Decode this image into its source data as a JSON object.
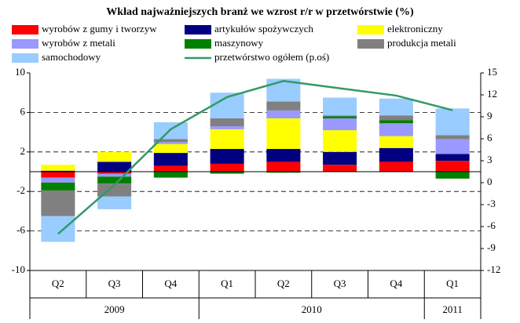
{
  "chart_data": {
    "type": "bar",
    "stacked": true,
    "title": "Wkład najważniejszych branż we wzrost r/r w przetwórstwie (%)",
    "categories": [
      "Q2",
      "Q3",
      "Q4",
      "Q1",
      "Q2",
      "Q3",
      "Q4",
      "Q1"
    ],
    "year_groups": [
      {
        "name": "2009",
        "count": 3
      },
      {
        "name": "2010",
        "count": 4
      },
      {
        "name": "2011",
        "count": 1
      }
    ],
    "series": [
      {
        "name": "wyrobów z gumy i tworzyw",
        "color": "#ff0000",
        "values": [
          -0.6,
          -0.2,
          0.6,
          0.8,
          1.0,
          0.7,
          1.0,
          1.1
        ]
      },
      {
        "name": "artykułów spożywczych",
        "color": "#000080",
        "values": [
          0.1,
          1.0,
          1.3,
          1.5,
          1.3,
          1.3,
          1.4,
          0.7
        ]
      },
      {
        "name": "elektroniczny",
        "color": "#ffff00",
        "values": [
          0.6,
          1.0,
          0.9,
          2.0,
          3.1,
          2.2,
          1.2,
          0
        ]
      },
      {
        "name": "wyrobów z metali",
        "color": "#9999ff",
        "values": [
          -0.5,
          -0.3,
          0.2,
          0.3,
          0.8,
          1.2,
          1.3,
          1.5
        ]
      },
      {
        "name": "maszynowy",
        "color": "#008000",
        "values": [
          -0.8,
          -0.7,
          -0.6,
          -0.2,
          -0.1,
          0.2,
          0.3,
          -0.7
        ]
      },
      {
        "name": "produkcja metali",
        "color": "#808080",
        "values": [
          -2.6,
          -1.3,
          0.3,
          0.8,
          0.9,
          0.1,
          0.5,
          0.4
        ]
      },
      {
        "name": "samochodowy",
        "color": "#99ccff",
        "values": [
          -2.6,
          -1.3,
          1.7,
          2.6,
          2.3,
          1.8,
          1.7,
          2.7
        ]
      },
      {
        "name": "przetwórstwo ogółem (p.oś)",
        "color": "#339966",
        "type": "line",
        "axis": "y2",
        "values": [
          -7,
          -0.3,
          7.3,
          11.7,
          13.9,
          12.9,
          11.9,
          9.9
        ]
      }
    ],
    "ylim": [
      -10,
      10
    ],
    "yticks": [
      -10,
      -6,
      -2,
      2,
      6,
      10
    ],
    "y2lim": [
      -12,
      15
    ],
    "y2ticks": [
      -12,
      -9,
      -6,
      -3,
      0,
      3,
      6,
      9,
      12,
      15
    ],
    "grid": true
  }
}
